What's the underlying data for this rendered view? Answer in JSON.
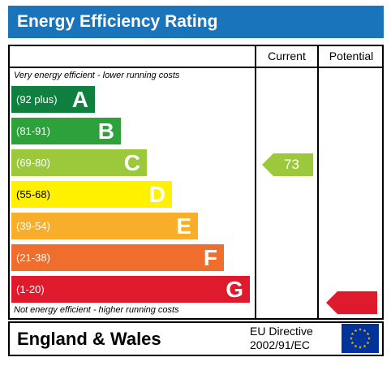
{
  "header": {
    "title": "Energy Efficiency Rating"
  },
  "columns": {
    "current": "Current",
    "potential": "Potential"
  },
  "notes": {
    "top": "Very energy efficient - lower running costs",
    "bottom": "Not energy efficient - higher running costs"
  },
  "bands": [
    {
      "range": "(92 plus)",
      "letter": "A",
      "color": "#0f8040"
    },
    {
      "range": "(81-91)",
      "letter": "B",
      "color": "#2ea23a"
    },
    {
      "range": "(69-80)",
      "letter": "C",
      "color": "#9cc83c"
    },
    {
      "range": "(55-68)",
      "letter": "D",
      "color": "#fff100"
    },
    {
      "range": "(39-54)",
      "letter": "E",
      "color": "#f8ae2b"
    },
    {
      "range": "(21-38)",
      "letter": "F",
      "color": "#ef6e2d"
    },
    {
      "range": "(1-20)",
      "letter": "G",
      "color": "#e01a2d"
    }
  ],
  "ratings": {
    "current": {
      "value": "73",
      "band": "C",
      "color": "#9cc83c"
    },
    "potential": {
      "value": "",
      "band": "G",
      "color": "#e01a2d"
    }
  },
  "footer": {
    "country": "England & Wales",
    "directive_line1": "EU Directive",
    "directive_line2": "2002/91/EC",
    "flag_icon": "eu-flag-icon",
    "flag_color": "#003399",
    "star_color": "#ffcc00"
  }
}
